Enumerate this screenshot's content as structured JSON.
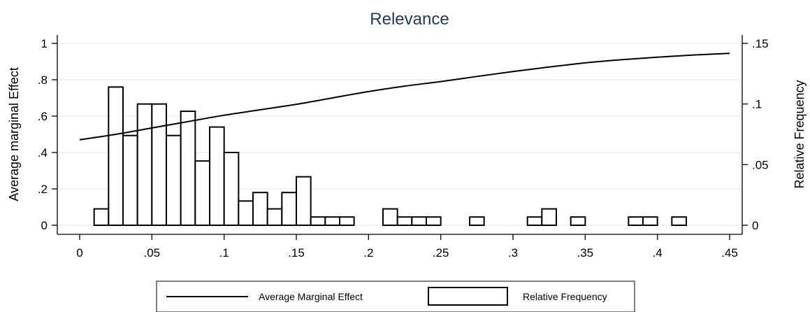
{
  "chart_data": {
    "type": "bar+line",
    "title": "Relevance",
    "xlabel": "",
    "ylabel_left": "Average marginal Effect",
    "ylabel_right": "Relative Frequency",
    "xlim": [
      0,
      0.45
    ],
    "ylim_left": [
      0,
      1
    ],
    "ylim_right": [
      0,
      0.15
    ],
    "x_ticks": [
      0,
      0.05,
      0.1,
      0.15,
      0.2,
      0.25,
      0.3,
      0.35,
      0.4,
      0.45
    ],
    "x_tick_labels": [
      "0",
      ".05",
      ".1",
      ".15",
      ".2",
      ".25",
      ".3",
      ".35",
      ".4",
      ".45"
    ],
    "y_left_ticks": [
      0,
      0.2,
      0.4,
      0.6,
      0.8,
      1
    ],
    "y_left_tick_labels": [
      "0",
      ".2",
      ".4",
      ".6",
      ".8",
      "1"
    ],
    "y_right_ticks": [
      0,
      0.05,
      0.1,
      0.15
    ],
    "y_right_tick_labels": [
      "0",
      ".05",
      ".1",
      ".15"
    ],
    "grid": true,
    "legend_position": "bottom",
    "series": [
      {
        "name": "Average Marginal Effect",
        "kind": "line",
        "axis": "left",
        "x": [
          0,
          0.025,
          0.05,
          0.075,
          0.1,
          0.125,
          0.15,
          0.175,
          0.2,
          0.225,
          0.25,
          0.275,
          0.3,
          0.325,
          0.35,
          0.375,
          0.4,
          0.425,
          0.45
        ],
        "y": [
          0.47,
          0.5,
          0.535,
          0.57,
          0.605,
          0.635,
          0.665,
          0.7,
          0.735,
          0.765,
          0.79,
          0.818,
          0.845,
          0.87,
          0.893,
          0.91,
          0.924,
          0.936,
          0.945
        ]
      },
      {
        "name": "Relative Frequency",
        "kind": "bar",
        "axis": "right",
        "bin_width": 0.01,
        "bin_start": [
          0.01,
          0.02,
          0.03,
          0.04,
          0.05,
          0.06,
          0.07,
          0.08,
          0.09,
          0.1,
          0.11,
          0.12,
          0.13,
          0.14,
          0.15,
          0.16,
          0.17,
          0.18,
          0.21,
          0.22,
          0.23,
          0.24,
          0.27,
          0.31,
          0.32,
          0.34,
          0.38,
          0.39,
          0.41
        ],
        "values": [
          0.0135,
          0.114,
          0.074,
          0.1,
          0.1,
          0.074,
          0.094,
          0.053,
          0.081,
          0.06,
          0.02,
          0.027,
          0.0135,
          0.027,
          0.04,
          0.0068,
          0.0068,
          0.0068,
          0.0135,
          0.0068,
          0.0068,
          0.0068,
          0.0068,
          0.0068,
          0.0135,
          0.0068,
          0.0068,
          0.0068,
          0.0068
        ]
      }
    ]
  },
  "colors": {
    "title": "#1f3b5c",
    "grid": "#e4eef0",
    "line": "#000000",
    "bar_fill": "#ffffff",
    "bar_stroke": "#000000"
  }
}
